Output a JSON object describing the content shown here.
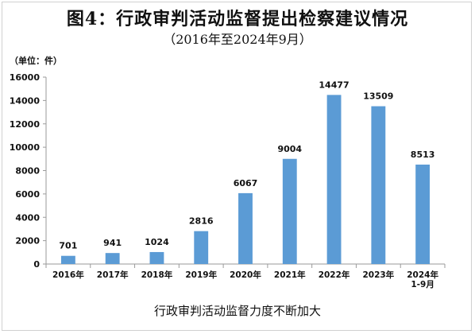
{
  "header": {
    "title": "图4：行政审判活动监督提出检察建议情况",
    "subtitle": "（2016年至2024年9月）",
    "unit": "（单位：件）"
  },
  "caption": "行政审判活动监督力度不断加大",
  "chart_data": {
    "type": "bar",
    "categories": [
      "2016年",
      "2017年",
      "2018年",
      "2019年",
      "2020年",
      "2021年",
      "2022年",
      "2023年",
      "2024年\n1-9月"
    ],
    "values": [
      701,
      941,
      1024,
      2816,
      6067,
      9004,
      14477,
      13509,
      8513
    ],
    "ylim": [
      0,
      16000
    ],
    "yticks": [
      0,
      2000,
      4000,
      6000,
      8000,
      10000,
      12000,
      14000,
      16000
    ],
    "grid": false,
    "legend": "none",
    "bar_color": "#5b9bd5"
  }
}
